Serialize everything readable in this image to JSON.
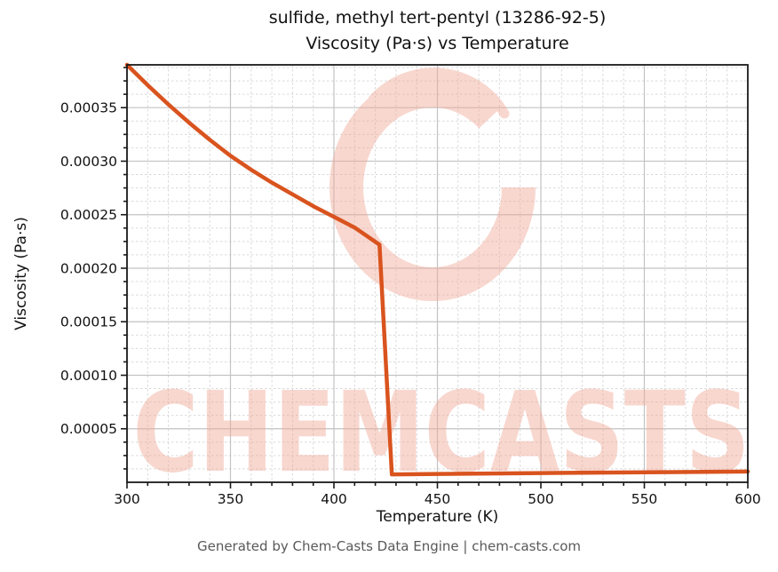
{
  "title": {
    "line1": "sulfide, methyl tert-pentyl (13286-92-5)",
    "line2": "Viscosity (Pa·s) vs Temperature"
  },
  "footer": {
    "text": "Generated by Chem-Casts Data Engine | chem-casts.com"
  },
  "watermark": {
    "text": "CHEMCASTS",
    "color": "#f0a896",
    "opacity": 0.45
  },
  "colors": {
    "line": "#d9531e",
    "grid_major": "#c3c3c3",
    "grid_minor": "#d9d9d9",
    "spine": "#1a1a1a",
    "tick": "#1a1a1a",
    "title_text": "#111111",
    "footer_text": "#595959"
  },
  "chart_data": {
    "type": "line",
    "title": "sulfide, methyl tert-pentyl (13286-92-5) — Viscosity (Pa·s) vs Temperature",
    "xlabel": "Temperature (K)",
    "ylabel": "Viscosity (Pa·s)",
    "xlim": [
      300,
      600
    ],
    "ylim": [
      0,
      0.00039
    ],
    "x_ticks": [
      300,
      350,
      400,
      450,
      500,
      550,
      600
    ],
    "x_tick_labels": [
      "300",
      "350",
      "400",
      "450",
      "500",
      "550",
      "600"
    ],
    "y_ticks": [
      5e-05,
      0.0001,
      0.00015,
      0.0002,
      0.00025,
      0.0003,
      0.00035
    ],
    "y_tick_labels": [
      "0.00005",
      "0.00010",
      "0.00015",
      "0.00020",
      "0.00025",
      "0.00030",
      "0.00035"
    ],
    "x_minor_step": 10,
    "y_minor_step": 1.25e-05,
    "grid": true,
    "legend": false,
    "series": [
      {
        "name": "viscosity",
        "color": "#d9531e",
        "points": [
          [
            300,
            0.00039
          ],
          [
            310,
            0.000371
          ],
          [
            320,
            0.000353
          ],
          [
            330,
            0.000336
          ],
          [
            340,
            0.00032
          ],
          [
            350,
            0.000305
          ],
          [
            360,
            0.000292
          ],
          [
            370,
            0.00028
          ],
          [
            380,
            0.000269
          ],
          [
            390,
            0.000258
          ],
          [
            400,
            0.000248
          ],
          [
            410,
            0.000238
          ],
          [
            422,
            0.000222
          ],
          [
            428,
            7.4e-06
          ],
          [
            450,
            7.8e-06
          ],
          [
            500,
            8.6e-06
          ],
          [
            550,
            9.3e-06
          ],
          [
            600,
            1e-05
          ]
        ]
      }
    ]
  }
}
